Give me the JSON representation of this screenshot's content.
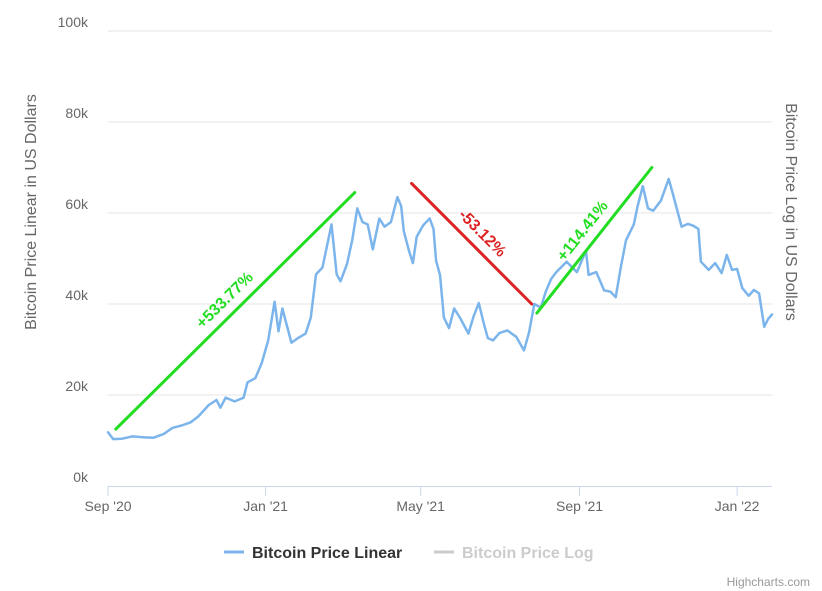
{
  "chart_data": {
    "type": "line",
    "title": "",
    "xlabel": "",
    "ylabel": "Bitcoin Price Linear in US Dollars",
    "ylabel_right": "Bitcoin Price Log in US Dollars",
    "ylim": [
      0,
      100000
    ],
    "y_ticks": [
      {
        "value": 0,
        "label": "0k"
      },
      {
        "value": 20000,
        "label": "20k"
      },
      {
        "value": 40000,
        "label": "40k"
      },
      {
        "value": 60000,
        "label": "60k"
      },
      {
        "value": 80000,
        "label": "80k"
      },
      {
        "value": 100000,
        "label": "100k"
      }
    ],
    "x_range": [
      "2020-09-01",
      "2022-01-28"
    ],
    "x_ticks": [
      {
        "date": "2020-09-01",
        "label": "Sep '20"
      },
      {
        "date": "2021-01-01",
        "label": "Jan '21"
      },
      {
        "date": "2021-05-01",
        "label": "May '21"
      },
      {
        "date": "2021-09-01",
        "label": "Sep '21"
      },
      {
        "date": "2022-01-01",
        "label": "Jan '22"
      }
    ],
    "grid": true,
    "legend_position": "bottom-center",
    "colors": {
      "line": "#7cb5ec",
      "inactive": "#cccccc",
      "grid": "#e6e6e6",
      "up": "#22dd22",
      "down": "#dd2222"
    },
    "series": [
      {
        "name": "Bitcoin Price Linear",
        "visible": true,
        "points": [
          [
            "2020-09-01",
            11800
          ],
          [
            "2020-09-05",
            10300
          ],
          [
            "2020-09-12",
            10400
          ],
          [
            "2020-09-20",
            10900
          ],
          [
            "2020-09-28",
            10700
          ],
          [
            "2020-10-06",
            10600
          ],
          [
            "2020-10-14",
            11400
          ],
          [
            "2020-10-21",
            12800
          ],
          [
            "2020-10-28",
            13300
          ],
          [
            "2020-11-04",
            14000
          ],
          [
            "2020-11-10",
            15300
          ],
          [
            "2020-11-18",
            17800
          ],
          [
            "2020-11-24",
            18900
          ],
          [
            "2020-11-27",
            17200
          ],
          [
            "2020-12-01",
            19400
          ],
          [
            "2020-12-08",
            18600
          ],
          [
            "2020-12-15",
            19400
          ],
          [
            "2020-12-18",
            22800
          ],
          [
            "2020-12-24",
            23700
          ],
          [
            "2020-12-29",
            27000
          ],
          [
            "2021-01-03",
            32000
          ],
          [
            "2021-01-08",
            40500
          ],
          [
            "2021-01-11",
            34000
          ],
          [
            "2021-01-14",
            39000
          ],
          [
            "2021-01-21",
            31500
          ],
          [
            "2021-01-26",
            32500
          ],
          [
            "2021-02-01",
            33500
          ],
          [
            "2021-02-05",
            37000
          ],
          [
            "2021-02-09",
            46500
          ],
          [
            "2021-02-14",
            48000
          ],
          [
            "2021-02-17",
            52000
          ],
          [
            "2021-02-21",
            57500
          ],
          [
            "2021-02-25",
            46500
          ],
          [
            "2021-02-28",
            45000
          ],
          [
            "2021-03-05",
            48800
          ],
          [
            "2021-03-09",
            54000
          ],
          [
            "2021-03-13",
            61000
          ],
          [
            "2021-03-17",
            58000
          ],
          [
            "2021-03-21",
            57500
          ],
          [
            "2021-03-25",
            52000
          ],
          [
            "2021-03-30",
            58800
          ],
          [
            "2021-04-03",
            57000
          ],
          [
            "2021-04-08",
            58000
          ],
          [
            "2021-04-13",
            63500
          ],
          [
            "2021-04-16",
            61500
          ],
          [
            "2021-04-18",
            56000
          ],
          [
            "2021-04-22",
            51700
          ],
          [
            "2021-04-25",
            49000
          ],
          [
            "2021-04-28",
            54800
          ],
          [
            "2021-05-03",
            57300
          ],
          [
            "2021-05-08",
            58800
          ],
          [
            "2021-05-11",
            56500
          ],
          [
            "2021-05-13",
            49500
          ],
          [
            "2021-05-16",
            46400
          ],
          [
            "2021-05-19",
            37000
          ],
          [
            "2021-05-23",
            34700
          ],
          [
            "2021-05-27",
            39000
          ],
          [
            "2021-06-01",
            36700
          ],
          [
            "2021-06-07",
            33500
          ],
          [
            "2021-06-11",
            37300
          ],
          [
            "2021-06-15",
            40200
          ],
          [
            "2021-06-19",
            35600
          ],
          [
            "2021-06-22",
            32500
          ],
          [
            "2021-06-26",
            32000
          ],
          [
            "2021-07-01",
            33600
          ],
          [
            "2021-07-07",
            34200
          ],
          [
            "2021-07-14",
            32800
          ],
          [
            "2021-07-20",
            29800
          ],
          [
            "2021-07-24",
            33800
          ],
          [
            "2021-07-28",
            40000
          ],
          [
            "2021-08-02",
            39200
          ],
          [
            "2021-08-06",
            42800
          ],
          [
            "2021-08-10",
            45500
          ],
          [
            "2021-08-14",
            47000
          ],
          [
            "2021-08-22",
            49300
          ],
          [
            "2021-08-30",
            47000
          ],
          [
            "2021-09-06",
            51700
          ],
          [
            "2021-09-08",
            46400
          ],
          [
            "2021-09-14",
            47000
          ],
          [
            "2021-09-20",
            43000
          ],
          [
            "2021-09-25",
            42700
          ],
          [
            "2021-09-29",
            41500
          ],
          [
            "2021-10-03",
            48200
          ],
          [
            "2021-10-07",
            54000
          ],
          [
            "2021-10-13",
            57500
          ],
          [
            "2021-10-16",
            61500
          ],
          [
            "2021-10-20",
            65900
          ],
          [
            "2021-10-24",
            61000
          ],
          [
            "2021-10-28",
            60500
          ],
          [
            "2021-11-03",
            62700
          ],
          [
            "2021-11-09",
            67500
          ],
          [
            "2021-11-12",
            64500
          ],
          [
            "2021-11-16",
            60200
          ],
          [
            "2021-11-19",
            57000
          ],
          [
            "2021-11-24",
            57600
          ],
          [
            "2021-11-28",
            57200
          ],
          [
            "2021-12-02",
            56500
          ],
          [
            "2021-12-04",
            49300
          ],
          [
            "2021-12-10",
            47500
          ],
          [
            "2021-12-15",
            49000
          ],
          [
            "2021-12-20",
            46800
          ],
          [
            "2021-12-24",
            50800
          ],
          [
            "2021-12-28",
            47500
          ],
          [
            "2022-01-01",
            47700
          ],
          [
            "2022-01-05",
            43500
          ],
          [
            "2022-01-10",
            41800
          ],
          [
            "2022-01-14",
            43100
          ],
          [
            "2022-01-18",
            42300
          ],
          [
            "2022-01-22",
            35000
          ],
          [
            "2022-01-25",
            36700
          ],
          [
            "2022-01-28",
            37700
          ]
        ]
      },
      {
        "name": "Bitcoin Price Log",
        "visible": false,
        "points": []
      }
    ],
    "annotations": [
      {
        "text": "+533.77%",
        "direction": "up",
        "from": [
          "2020-09-07",
          12500
        ],
        "to": [
          "2021-03-11",
          64500
        ]
      },
      {
        "text": "-53.12%",
        "direction": "down",
        "from": [
          "2021-04-24",
          66500
        ],
        "to": [
          "2021-07-26",
          40000
        ]
      },
      {
        "text": "+114.41%",
        "direction": "up",
        "from": [
          "2021-07-30",
          38000
        ],
        "to": [
          "2021-10-27",
          70000
        ]
      }
    ],
    "credits": "Highcharts.com"
  }
}
